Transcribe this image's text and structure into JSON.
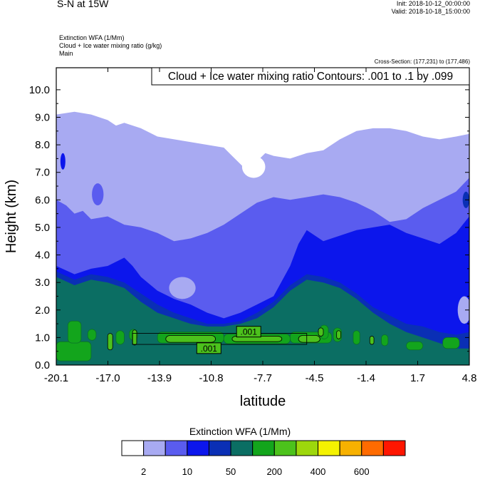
{
  "header": {
    "title": "S-N at 15W",
    "init": "Init: 2018-10-12_00:00:00",
    "valid": "Valid: 2018-10-18_15:00:00",
    "field1": "Extinction WFA   (1/Mm)",
    "field2": "Cloud + Ice water mixing ratio   (g/kg)",
    "field3": "Main",
    "cross_section": "Cross-Section: (177,231) to (177,486)"
  },
  "chart_data": {
    "type": "heatmap",
    "title": "Cloud + Ice water mixing ratio Contours: .001 to .1 by .099",
    "xlabel": "latitude",
    "ylabel": "Height (km)",
    "xlim": [
      -20.1,
      4.8
    ],
    "ylim": [
      0.0,
      10.8
    ],
    "x_ticks": [
      "-20.1",
      "-17.0",
      "-13.9",
      "-10.8",
      "-7.7",
      "-4.5",
      "-1.4",
      "1.7",
      "4.8"
    ],
    "y_ticks": [
      "0.0",
      "1.0",
      "2.0",
      "3.0",
      "4.0",
      "5.0",
      "6.0",
      "7.0",
      "8.0",
      "9.0",
      "10.0"
    ],
    "contour_labels": [
      {
        "text": ".001",
        "x": -8.5,
        "y": 1.2
      },
      {
        "text": ".001",
        "x": -10.9,
        "y": 0.6
      }
    ],
    "colorbar": {
      "title": "Extinction WFA  (1/Mm)",
      "colors": [
        "#ffffff",
        "#a8aaf2",
        "#5a5cef",
        "#0c16ec",
        "#0a2fb5",
        "#0b6e63",
        "#13a51c",
        "#4cc21c",
        "#9dd70c",
        "#f4f200",
        "#f7b100",
        "#ff6b00",
        "#ff1600"
      ],
      "labels": [
        {
          "text": "2",
          "after_box": 1
        },
        {
          "text": "10",
          "after_box": 3
        },
        {
          "text": "50",
          "after_box": 5
        },
        {
          "text": "200",
          "after_box": 7
        },
        {
          "text": "400",
          "after_box": 9
        },
        {
          "text": "600",
          "after_box": 11
        }
      ]
    },
    "layers": [
      {
        "color": "#a8aaf2",
        "top": [
          [
            -20.1,
            9.1
          ],
          [
            -19,
            9.2
          ],
          [
            -18,
            9.1
          ],
          [
            -17,
            8.9
          ],
          [
            -16.5,
            8.7
          ],
          [
            -16,
            8.8
          ],
          [
            -15,
            8.6
          ],
          [
            -14,
            8.3
          ],
          [
            -13,
            8.2
          ],
          [
            -12,
            8.1
          ],
          [
            -11,
            8.0
          ],
          [
            -10,
            7.9
          ],
          [
            -9.5,
            7.6
          ],
          [
            -9,
            7.3
          ],
          [
            -8.5,
            7.0
          ],
          [
            -8,
            7.4
          ],
          [
            -7.5,
            7.7
          ],
          [
            -7,
            7.6
          ],
          [
            -6,
            7.5
          ],
          [
            -5,
            7.7
          ],
          [
            -4,
            7.8
          ],
          [
            -3,
            8.2
          ],
          [
            -2,
            8.5
          ],
          [
            -1,
            8.6
          ],
          [
            0,
            8.6
          ],
          [
            1,
            8.5
          ],
          [
            2,
            8.3
          ],
          [
            3,
            8.2
          ],
          [
            4,
            8.3
          ],
          [
            4.8,
            8.4
          ]
        ]
      },
      {
        "color": "#5a5cef",
        "top": [
          [
            -20.1,
            6.0
          ],
          [
            -19.5,
            5.8
          ],
          [
            -19,
            5.5
          ],
          [
            -18.5,
            5.6
          ],
          [
            -18,
            5.3
          ],
          [
            -17,
            5.4
          ],
          [
            -16,
            5.1
          ],
          [
            -15,
            5.0
          ],
          [
            -14,
            4.8
          ],
          [
            -13,
            4.5
          ],
          [
            -12,
            4.6
          ],
          [
            -11,
            4.8
          ],
          [
            -10,
            5.1
          ],
          [
            -9,
            5.5
          ],
          [
            -8,
            5.9
          ],
          [
            -7,
            6.1
          ],
          [
            -6,
            6.0
          ],
          [
            -5,
            6.1
          ],
          [
            -4,
            6.2
          ],
          [
            -3,
            6.1
          ],
          [
            -2,
            5.9
          ],
          [
            -1,
            5.6
          ],
          [
            0,
            5.2
          ],
          [
            1,
            5.3
          ],
          [
            2,
            5.7
          ],
          [
            3,
            6.0
          ],
          [
            4,
            6.3
          ],
          [
            4.8,
            6.8
          ]
        ]
      },
      {
        "color": "#0c16ec",
        "top": [
          [
            -20.1,
            3.6
          ],
          [
            -19,
            3.3
          ],
          [
            -18,
            3.5
          ],
          [
            -17,
            3.6
          ],
          [
            -16,
            3.9
          ],
          [
            -15.5,
            3.6
          ],
          [
            -15,
            3.2
          ],
          [
            -14,
            2.7
          ],
          [
            -13,
            2.4
          ],
          [
            -12,
            2.2
          ],
          [
            -11,
            1.9
          ],
          [
            -10,
            1.7
          ],
          [
            -9,
            1.9
          ],
          [
            -8,
            2.2
          ],
          [
            -7,
            2.5
          ],
          [
            -6,
            3.6
          ],
          [
            -5.5,
            4.4
          ],
          [
            -5,
            4.9
          ],
          [
            -4,
            4.5
          ],
          [
            -3,
            4.7
          ],
          [
            -2,
            4.9
          ],
          [
            -1,
            5.0
          ],
          [
            0,
            5.1
          ],
          [
            1,
            4.8
          ],
          [
            2,
            4.6
          ],
          [
            3,
            4.4
          ],
          [
            4,
            4.8
          ],
          [
            4.8,
            5.4
          ]
        ]
      },
      {
        "color": "#0a2fb5",
        "top": [
          [
            -20.1,
            3.4
          ],
          [
            -19,
            3.1
          ],
          [
            -18,
            3.3
          ],
          [
            -17,
            3.2
          ],
          [
            -16,
            3.0
          ],
          [
            -15,
            2.6
          ],
          [
            -14,
            2.2
          ],
          [
            -13,
            1.9
          ],
          [
            -12,
            1.7
          ],
          [
            -11,
            1.5
          ],
          [
            -10,
            1.5
          ],
          [
            -9,
            1.6
          ],
          [
            -8,
            1.9
          ],
          [
            -7,
            2.3
          ],
          [
            -6,
            2.9
          ],
          [
            -5,
            3.3
          ],
          [
            -4,
            3.2
          ],
          [
            -3,
            3.0
          ],
          [
            -2,
            2.6
          ],
          [
            -1,
            2.1
          ],
          [
            0,
            1.8
          ],
          [
            1,
            1.5
          ],
          [
            2,
            1.4
          ],
          [
            3,
            1.2
          ],
          [
            4,
            1.1
          ],
          [
            4.8,
            1.2
          ]
        ]
      },
      {
        "color": "#0b6e63",
        "top": [
          [
            -20.1,
            3.2
          ],
          [
            -19,
            2.9
          ],
          [
            -18,
            3.1
          ],
          [
            -17,
            3.0
          ],
          [
            -16,
            2.8
          ],
          [
            -15,
            2.3
          ],
          [
            -14,
            1.9
          ],
          [
            -13,
            1.7
          ],
          [
            -12,
            1.5
          ],
          [
            -11,
            1.4
          ],
          [
            -10,
            1.4
          ],
          [
            -9,
            1.5
          ],
          [
            -8,
            1.7
          ],
          [
            -7,
            2.1
          ],
          [
            -6,
            2.7
          ],
          [
            -5,
            3.1
          ],
          [
            -4,
            3.0
          ],
          [
            -3,
            2.8
          ],
          [
            -2,
            2.4
          ],
          [
            -1,
            1.9
          ],
          [
            0,
            1.5
          ],
          [
            1,
            1.2
          ],
          [
            2,
            1.0
          ],
          [
            3,
            0.8
          ],
          [
            4,
            0.6
          ],
          [
            4.8,
            0.6
          ]
        ]
      }
    ],
    "patches": [
      {
        "color": "#ffffff",
        "cx": -8.2,
        "cy": 7.2,
        "rx": 0.7,
        "ry": 0.4
      },
      {
        "color": "#a8aaf2",
        "cx": -19.7,
        "cy": 7.4,
        "rx": 0.25,
        "ry": 0.5
      },
      {
        "color": "#0c16ec",
        "cx": -19.7,
        "cy": 7.4,
        "rx": 0.15,
        "ry": 0.3
      },
      {
        "color": "#5a5cef",
        "cx": -17.6,
        "cy": 6.2,
        "rx": 0.35,
        "ry": 0.4
      },
      {
        "color": "#a8aaf2",
        "cx": -12.5,
        "cy": 2.8,
        "rx": 0.8,
        "ry": 0.4
      },
      {
        "color": "#0a2fb5",
        "cx": 4.6,
        "cy": 6.0,
        "rx": 0.2,
        "ry": 0.3
      },
      {
        "color": "#a8aaf2",
        "cx": 4.5,
        "cy": 2.0,
        "rx": 0.4,
        "ry": 0.5
      }
    ],
    "green_band": [
      [
        -20.1,
        0.5,
        2.1,
        0.7
      ],
      [
        -19.4,
        1.2,
        0.8,
        0.8
      ],
      [
        -18.2,
        1.1,
        0.5,
        0.4
      ],
      [
        -16.5,
        1.0,
        0.5,
        0.5
      ],
      [
        -15.7,
        1.1,
        0.5,
        0.4
      ],
      [
        -14.0,
        1.0,
        4.0,
        0.4
      ],
      [
        -10.0,
        0.95,
        4.0,
        0.35
      ],
      [
        -6.0,
        1.0,
        2.5,
        0.4
      ],
      [
        -4.2,
        1.2,
        0.5,
        0.5
      ],
      [
        -3.4,
        1.1,
        0.5,
        0.5
      ],
      [
        -2.2,
        1.0,
        0.4,
        0.5
      ],
      [
        -0.5,
        0.9,
        0.4,
        0.4
      ],
      [
        1.0,
        0.7,
        1.0,
        0.3
      ],
      [
        3.2,
        0.8,
        1.0,
        0.4
      ]
    ],
    "bright_band": [
      [
        -17.0,
        0.85,
        0.3,
        0.6
      ],
      [
        -15.5,
        1.0,
        0.25,
        0.55
      ],
      [
        -13.5,
        0.95,
        3.0,
        0.25
      ],
      [
        -9.5,
        0.95,
        3.0,
        0.2
      ],
      [
        -5.5,
        0.95,
        1.3,
        0.25
      ],
      [
        -4.3,
        1.2,
        0.3,
        0.3
      ],
      [
        -3.2,
        1.1,
        0.25,
        0.3
      ],
      [
        -1.2,
        0.9,
        0.25,
        0.3
      ]
    ]
  }
}
